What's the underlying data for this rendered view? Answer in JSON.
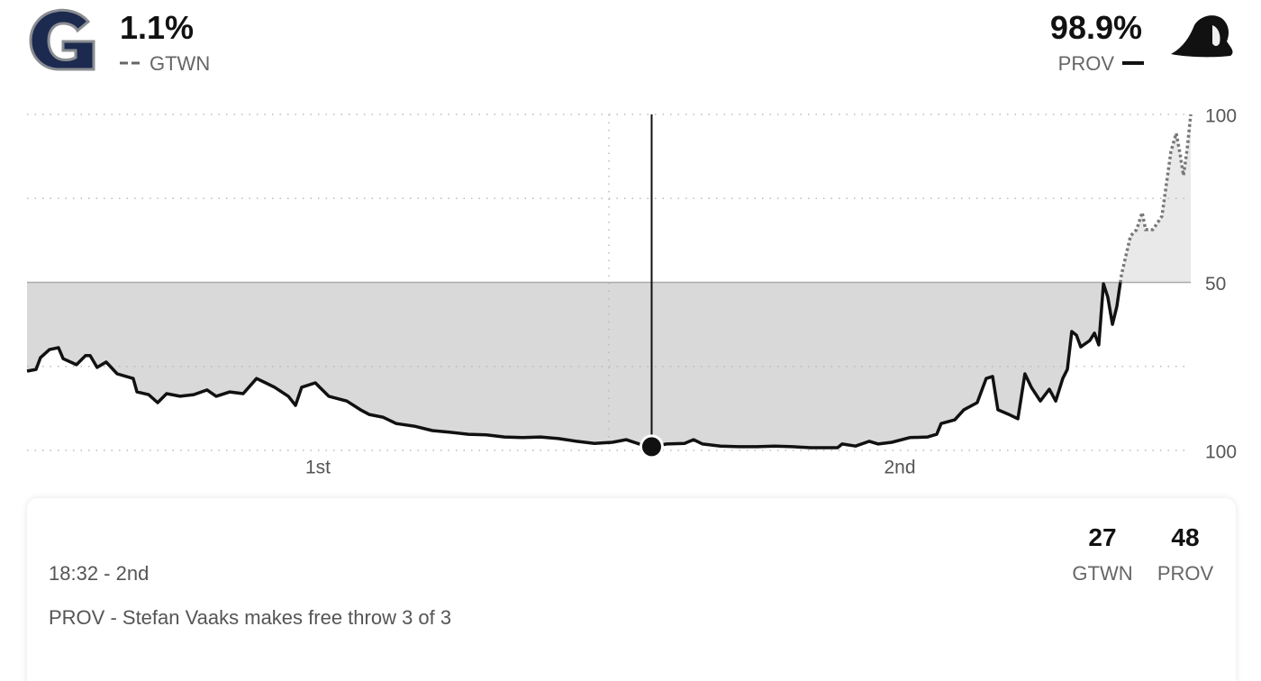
{
  "header": {
    "away": {
      "abbr": "GTWN",
      "pct": "1.1%"
    },
    "home": {
      "abbr": "PROV",
      "pct": "98.9%"
    }
  },
  "card": {
    "clock": "18:32 - 2nd",
    "play": "PROV - Stefan Vaaks makes free throw 3 of 3",
    "away_score": 27,
    "home_score": 48,
    "away_abbr": "GTWN",
    "home_abbr": "PROV"
  },
  "chart_data": {
    "type": "line",
    "xlim": [
      0,
      40
    ],
    "ylim": [
      0,
      100
    ],
    "xticks": [
      {
        "value": 10,
        "label": "1st"
      },
      {
        "value": 30,
        "label": "2nd"
      }
    ],
    "xgrid": [
      20
    ],
    "yticks": [
      {
        "value": 0,
        "label": "100"
      },
      {
        "value": 50,
        "label": "50"
      },
      {
        "value": 100,
        "label": "100"
      }
    ],
    "ygrid": [
      0,
      25,
      75,
      100
    ],
    "reference_line": 50,
    "line_color": "#111111",
    "upper_line_color": "#777777",
    "fill_below": "#d9d9d9",
    "fill_above": "#e9e9e9",
    "x": [
      0,
      0.31,
      0.46,
      0.77,
      1.08,
      1.24,
      1.7,
      2.01,
      2.17,
      2.41,
      2.72,
      3.1,
      3.65,
      3.78,
      4.18,
      4.49,
      4.8,
      5.26,
      5.73,
      6.19,
      6.5,
      6.97,
      7.43,
      7.89,
      8.2,
      8.51,
      8.98,
      9.23,
      9.44,
      9.91,
      10.06,
      10.37,
      10.99,
      11.46,
      11.76,
      12.23,
      12.69,
      13.31,
      13.93,
      14.55,
      15.17,
      15.79,
      16.41,
      17.03,
      17.65,
      18.27,
      18.89,
      19.5,
      20.12,
      20.59,
      21.05,
      21.47,
      21.98,
      22.6,
      22.91,
      23.22,
      23.84,
      24.46,
      25.08,
      25.7,
      26.32,
      26.93,
      27.86,
      28.02,
      28.48,
      28.95,
      29.26,
      29.72,
      30.34,
      30.96,
      31.27,
      31.42,
      31.89,
      32.2,
      32.66,
      32.97,
      33.19,
      33.37,
      33.75,
      34.06,
      34.3,
      34.52,
      34.83,
      35.14,
      35.36,
      35.6,
      35.76,
      35.91,
      36.07,
      36.22,
      36.53,
      36.69,
      36.84,
      37.0,
      37.15,
      37.31,
      37.46,
      37.62,
      37.93,
      38.14,
      38.33,
      38.45,
      38.7,
      39.01,
      39.32,
      39.5,
      39.63,
      39.75,
      39.88,
      40
    ],
    "values": [
      23.6,
      24.1,
      27.6,
      30.0,
      30.6,
      27.3,
      25.5,
      28.2,
      28.2,
      24.7,
      26.3,
      22.8,
      21.4,
      17.4,
      16.6,
      14.2,
      16.9,
      16.1,
      16.6,
      18.0,
      16.1,
      17.4,
      16.9,
      21.4,
      20.1,
      18.8,
      16.1,
      13.4,
      18.8,
      20.1,
      18.8,
      16.1,
      14.7,
      12.1,
      10.7,
      9.9,
      8.0,
      7.2,
      5.9,
      5.4,
      4.8,
      4.6,
      4.0,
      3.8,
      4.0,
      3.5,
      2.7,
      2.1,
      2.4,
      3.2,
      1.9,
      1.1,
      1.9,
      2.1,
      3.2,
      1.9,
      1.3,
      1.1,
      1.1,
      1.3,
      1.1,
      0.8,
      0.8,
      1.9,
      1.3,
      2.7,
      1.9,
      2.4,
      3.8,
      4.0,
      4.8,
      8.0,
      9.1,
      12.1,
      14.2,
      21.4,
      22.0,
      12.1,
      10.7,
      9.4,
      22.8,
      18.8,
      14.7,
      18.2,
      14.7,
      21.4,
      24.1,
      35.4,
      34.3,
      30.8,
      32.7,
      34.9,
      31.4,
      49.6,
      45.6,
      37.5,
      42.9,
      52.3,
      63.8,
      65.7,
      70.8,
      65.7,
      65.7,
      69.7,
      89.0,
      94.4,
      88.5,
      81.8,
      89.8,
      100
    ],
    "marker": {
      "x": 21.47,
      "value": 1.1
    }
  }
}
